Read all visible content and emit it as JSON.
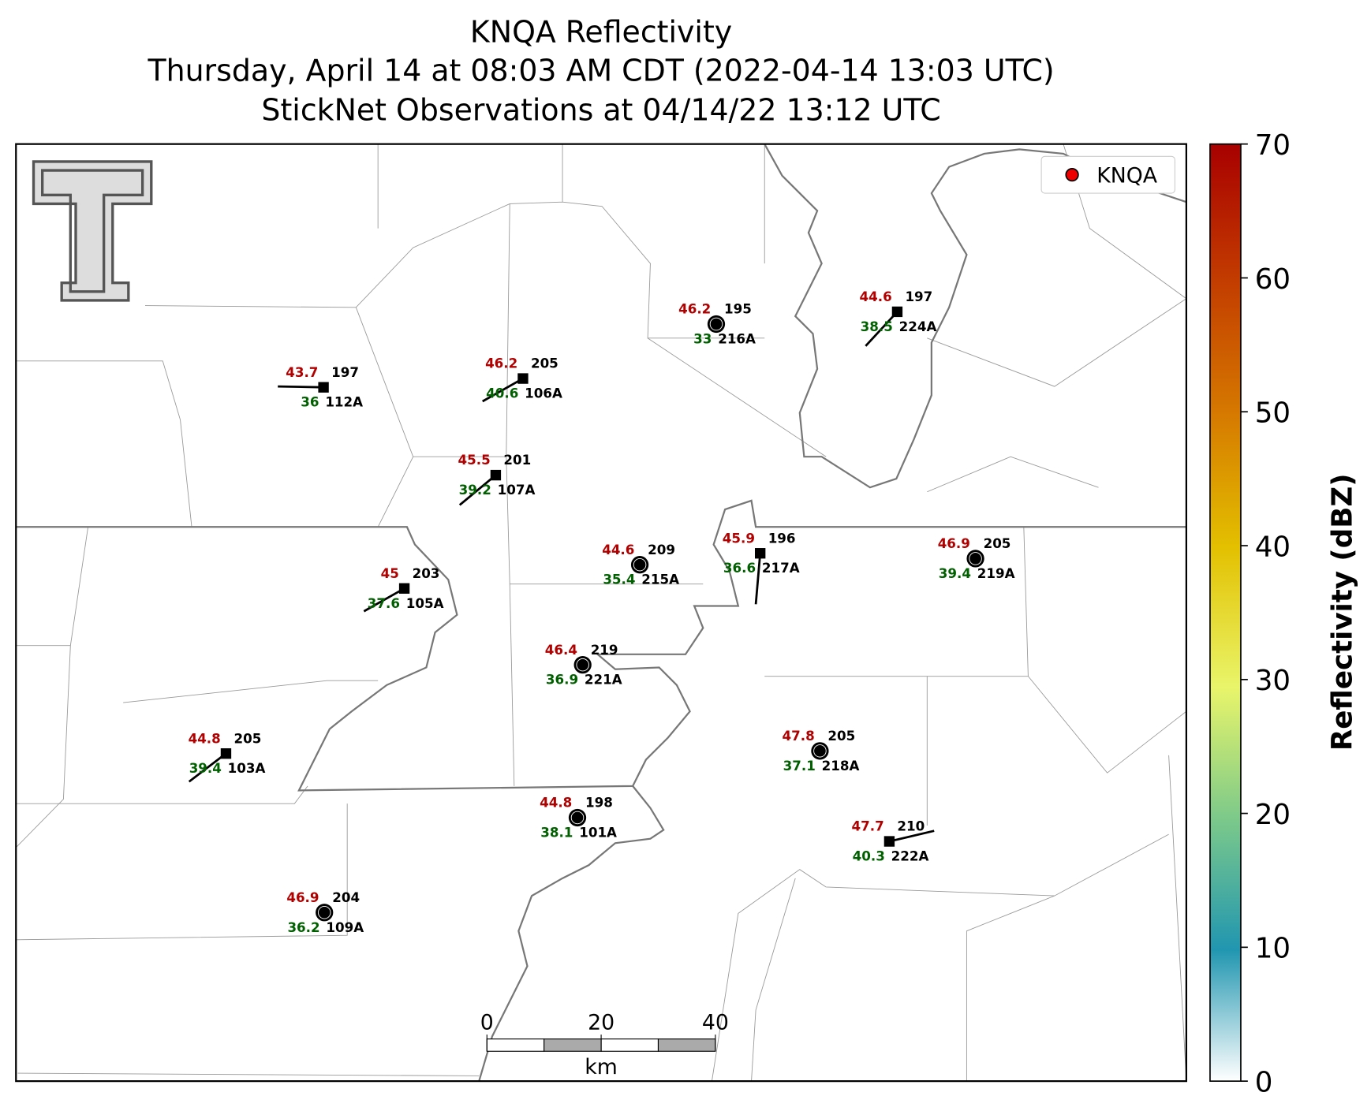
{
  "title": [
    "KNQA Reflectivity",
    "Thursday, April 14 at 08:03 AM CDT (2022-04-14 13:03 UTC)",
    "StickNet Observations at 04/14/22 13:12 UTC"
  ],
  "legend": "KNQA",
  "colorbar": {
    "label": "Reflectivity (dBZ)",
    "lim": [
      0,
      70
    ],
    "ticks": [
      0,
      10,
      20,
      30,
      40,
      50,
      60,
      70
    ]
  },
  "scale_bar": {
    "ticks": [
      0,
      20,
      40
    ],
    "unit": "km"
  },
  "stations": [
    {
      "id": "112A",
      "temperature": 43.7,
      "dewpoint": 36.0,
      "value": 197
    },
    {
      "id": "106A",
      "temperature": 46.2,
      "dewpoint": 40.6,
      "value": 205
    },
    {
      "id": "107A",
      "temperature": 45.5,
      "dewpoint": 39.2,
      "value": 201
    },
    {
      "id": "105A",
      "temperature": 45.0,
      "dewpoint": 37.6,
      "value": 203
    },
    {
      "id": "103A",
      "temperature": 44.8,
      "dewpoint": 39.4,
      "value": 205
    },
    {
      "id": "109A",
      "temperature": 46.9,
      "dewpoint": 36.2,
      "value": 204
    },
    {
      "id": "101A",
      "temperature": 44.8,
      "dewpoint": 38.1,
      "value": 198
    },
    {
      "id": "221A",
      "temperature": 46.4,
      "dewpoint": 36.9,
      "value": 219
    },
    {
      "id": "215A",
      "temperature": 44.6,
      "dewpoint": 35.4,
      "value": 209
    },
    {
      "id": "216A",
      "temperature": 46.2,
      "dewpoint": 33.0,
      "value": 195
    },
    {
      "id": "224A",
      "temperature": 44.6,
      "dewpoint": 38.5,
      "value": 197
    },
    {
      "id": "217A",
      "temperature": 45.9,
      "dewpoint": 36.6,
      "value": 196
    },
    {
      "id": "219A",
      "temperature": 46.9,
      "dewpoint": 39.4,
      "value": 205
    },
    {
      "id": "218A",
      "temperature": 47.8,
      "dewpoint": 37.1,
      "value": 205
    },
    {
      "id": "222A",
      "temperature": 47.7,
      "dewpoint": 40.3,
      "value": 210
    }
  ]
}
